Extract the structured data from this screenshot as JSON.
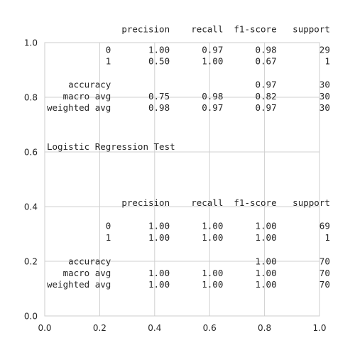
{
  "chart_data": {
    "type": "table",
    "grid": true,
    "xlim": [
      0.0,
      1.0
    ],
    "ylim": [
      0.0,
      1.0
    ],
    "x_ticks": [
      "0.0",
      "0.2",
      "0.4",
      "0.6",
      "0.8",
      "1.0"
    ],
    "y_ticks": [
      "0.0",
      "0.2",
      "0.4",
      "0.6",
      "0.8",
      "1.0"
    ],
    "texts": [
      {
        "x": 0.0,
        "y": 1.03,
        "text": "              precision    recall  f1-score   support"
      },
      {
        "x": 0.0,
        "y": 0.955,
        "text": "           0       1.00      0.97      0.98        29"
      },
      {
        "x": 0.0,
        "y": 0.913,
        "text": "           1       0.50      1.00      0.67         1"
      },
      {
        "x": 0.0,
        "y": 0.827,
        "text": "    accuracy                           0.97        30"
      },
      {
        "x": 0.0,
        "y": 0.785,
        "text": "   macro avg       0.75      0.98      0.82        30"
      },
      {
        "x": 0.0,
        "y": 0.743,
        "text": "weighted avg       0.98      0.97      0.97        30"
      },
      {
        "x": 0.0,
        "y": 0.6,
        "text": "Logistic Regression Test"
      },
      {
        "x": 0.0,
        "y": 0.395,
        "text": "              precision    recall  f1-score   support"
      },
      {
        "x": 0.0,
        "y": 0.31,
        "text": "           0       1.00      1.00      1.00        69"
      },
      {
        "x": 0.0,
        "y": 0.268,
        "text": "           1       1.00      1.00      1.00         1"
      },
      {
        "x": 0.0,
        "y": 0.18,
        "text": "    accuracy                           1.00        70"
      },
      {
        "x": 0.0,
        "y": 0.138,
        "text": "   macro avg       1.00      1.00      1.00        70"
      },
      {
        "x": 0.0,
        "y": 0.096,
        "text": "weighted avg       1.00      1.00      1.00        70"
      }
    ]
  }
}
